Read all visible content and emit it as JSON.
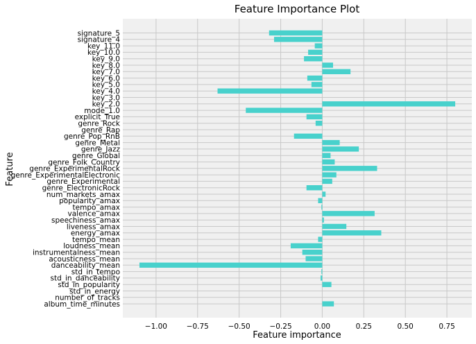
{
  "chart_data": {
    "type": "bar",
    "orientation": "horizontal",
    "title": "Feature Importance Plot",
    "xlabel": "Feature importance",
    "ylabel": "Feature",
    "xlim": [
      -1.2,
      0.9
    ],
    "xticks": [
      -1.0,
      -0.75,
      -0.5,
      -0.25,
      0.0,
      0.25,
      0.5,
      0.75
    ],
    "xtick_labels": [
      "−1.00",
      "−0.75",
      "−0.50",
      "−0.25",
      "0.00",
      "0.25",
      "0.50",
      "0.75"
    ],
    "grid": true,
    "color": "#48d1cc",
    "background": "#f0f0f0",
    "categories": [
      "signature_5",
      "signature_4",
      "key_11.0",
      "key_10.0",
      "key_9.0",
      "key_8.0",
      "key_7.0",
      "key_6.0",
      "key_5.0",
      "key_4.0",
      "key_3.0",
      "key_2.0",
      "mode_1.0",
      "explicit_True",
      "genre_Rock",
      "genre_Rap",
      "genre_Pop_RnB",
      "genre_Metal",
      "genre_Jazz",
      "genre_Global",
      "genre_Folk_Country",
      "genre_ExperimentalRock",
      "genre_ExperimentalElectronic",
      "genre_Experimental",
      "genre_ElectronicRock",
      "num_markets_amax",
      "popularity_amax",
      "tempo_amax",
      "valence_amax",
      "speechiness_amax",
      "liveness_amax",
      "energy_amax",
      "tempo_mean",
      "loudness_mean",
      "instrumentalness_mean",
      "acousticness_mean",
      "danceability_mean",
      "std_in_tempo",
      "std_in_danceability",
      "std_in_popularity",
      "std_in_energy",
      "number_of_tracks",
      "album_time_minutes"
    ],
    "values": [
      -0.32,
      -0.29,
      -0.045,
      -0.085,
      -0.11,
      0.065,
      0.17,
      -0.09,
      -0.065,
      -0.63,
      0.0,
      0.8,
      -0.46,
      -0.095,
      -0.04,
      0.0,
      -0.17,
      0.105,
      0.22,
      0.05,
      0.075,
      0.33,
      0.085,
      0.06,
      -0.095,
      0.02,
      -0.025,
      -0.005,
      0.315,
      0.01,
      0.145,
      0.355,
      -0.025,
      -0.19,
      -0.12,
      -0.1,
      -1.1,
      -0.005,
      -0.01,
      0.055,
      0.0,
      0.0,
      0.07
    ]
  }
}
